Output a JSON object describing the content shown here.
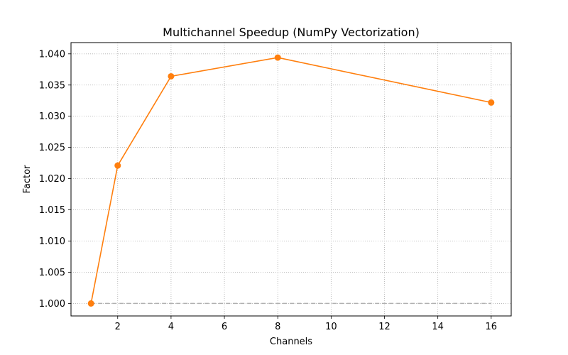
{
  "chart_data": {
    "type": "line",
    "title": "Multichannel Speedup (NumPy Vectorization)",
    "xlabel": "Channels",
    "ylabel": "Factor",
    "xlim": [
      0.25,
      16.75
    ],
    "ylim": [
      0.998,
      1.0418
    ],
    "x": [
      1,
      2,
      4,
      8,
      16
    ],
    "series": [
      {
        "values": [
          1.0,
          1.0221,
          1.0364,
          1.0394,
          1.0322
        ],
        "color": "#ff7f0e",
        "marker": "circle"
      }
    ],
    "reference_line": {
      "y": 1.0,
      "x_range": [
        1,
        16
      ],
      "color": "#b0b0b0",
      "style": "dashed"
    },
    "xticks": [
      2,
      4,
      6,
      8,
      10,
      12,
      14,
      16
    ],
    "xtick_labels": [
      "2",
      "4",
      "6",
      "8",
      "10",
      "12",
      "14",
      "16"
    ],
    "yticks": [
      1.0,
      1.005,
      1.01,
      1.015,
      1.02,
      1.025,
      1.03,
      1.035,
      1.04
    ],
    "ytick_labels": [
      "1.000",
      "1.005",
      "1.010",
      "1.015",
      "1.020",
      "1.025",
      "1.030",
      "1.035",
      "1.040"
    ],
    "grid": true,
    "grid_style": "dotted",
    "legend": "none"
  }
}
